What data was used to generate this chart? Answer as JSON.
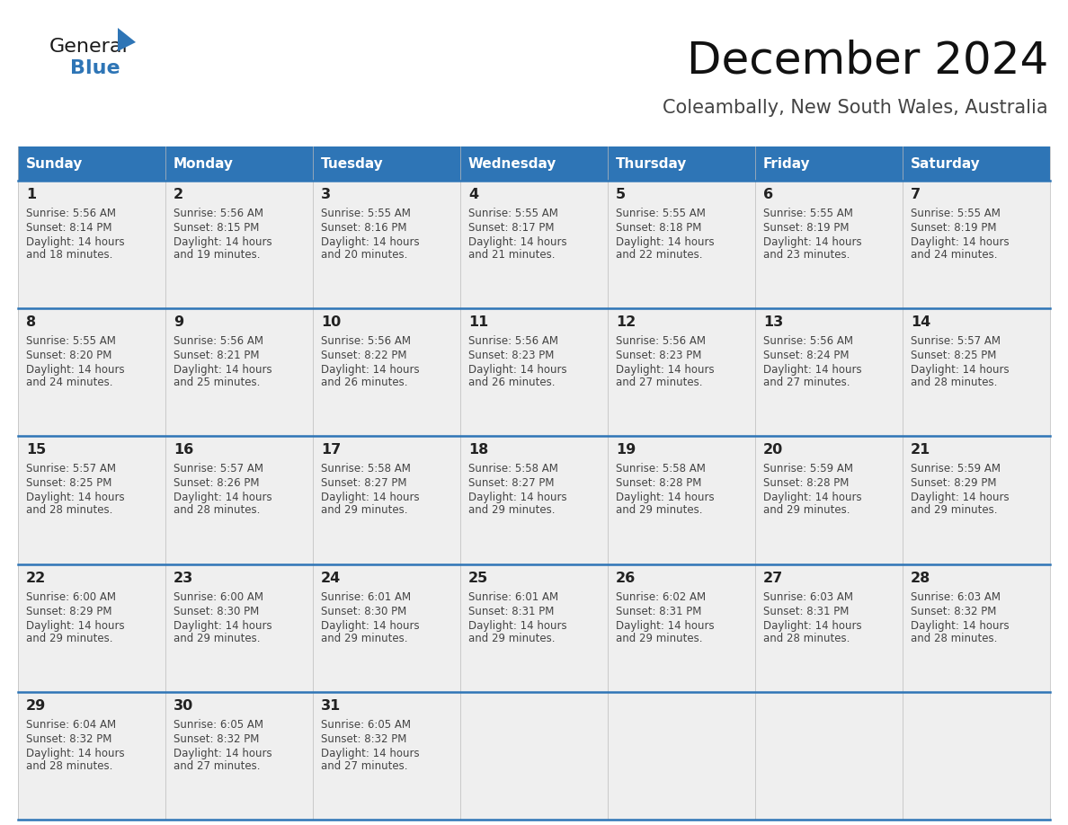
{
  "title": "December 2024",
  "subtitle": "Coleambally, New South Wales, Australia",
  "header_bg": "#2E75B6",
  "header_text": "#FFFFFF",
  "cell_bg_light": "#EFEFEF",
  "text_color": "#333333",
  "border_color": "#2E75B6",
  "days_of_week": [
    "Sunday",
    "Monday",
    "Tuesday",
    "Wednesday",
    "Thursday",
    "Friday",
    "Saturday"
  ],
  "weeks": [
    [
      {
        "day": 1,
        "sunrise": "5:56 AM",
        "sunset": "8:14 PM",
        "daylight": "14 hours and 18 minutes."
      },
      {
        "day": 2,
        "sunrise": "5:56 AM",
        "sunset": "8:15 PM",
        "daylight": "14 hours and 19 minutes."
      },
      {
        "day": 3,
        "sunrise": "5:55 AM",
        "sunset": "8:16 PM",
        "daylight": "14 hours and 20 minutes."
      },
      {
        "day": 4,
        "sunrise": "5:55 AM",
        "sunset": "8:17 PM",
        "daylight": "14 hours and 21 minutes."
      },
      {
        "day": 5,
        "sunrise": "5:55 AM",
        "sunset": "8:18 PM",
        "daylight": "14 hours and 22 minutes."
      },
      {
        "day": 6,
        "sunrise": "5:55 AM",
        "sunset": "8:19 PM",
        "daylight": "14 hours and 23 minutes."
      },
      {
        "day": 7,
        "sunrise": "5:55 AM",
        "sunset": "8:19 PM",
        "daylight": "14 hours and 24 minutes."
      }
    ],
    [
      {
        "day": 8,
        "sunrise": "5:55 AM",
        "sunset": "8:20 PM",
        "daylight": "14 hours and 24 minutes."
      },
      {
        "day": 9,
        "sunrise": "5:56 AM",
        "sunset": "8:21 PM",
        "daylight": "14 hours and 25 minutes."
      },
      {
        "day": 10,
        "sunrise": "5:56 AM",
        "sunset": "8:22 PM",
        "daylight": "14 hours and 26 minutes."
      },
      {
        "day": 11,
        "sunrise": "5:56 AM",
        "sunset": "8:23 PM",
        "daylight": "14 hours and 26 minutes."
      },
      {
        "day": 12,
        "sunrise": "5:56 AM",
        "sunset": "8:23 PM",
        "daylight": "14 hours and 27 minutes."
      },
      {
        "day": 13,
        "sunrise": "5:56 AM",
        "sunset": "8:24 PM",
        "daylight": "14 hours and 27 minutes."
      },
      {
        "day": 14,
        "sunrise": "5:57 AM",
        "sunset": "8:25 PM",
        "daylight": "14 hours and 28 minutes."
      }
    ],
    [
      {
        "day": 15,
        "sunrise": "5:57 AM",
        "sunset": "8:25 PM",
        "daylight": "14 hours and 28 minutes."
      },
      {
        "day": 16,
        "sunrise": "5:57 AM",
        "sunset": "8:26 PM",
        "daylight": "14 hours and 28 minutes."
      },
      {
        "day": 17,
        "sunrise": "5:58 AM",
        "sunset": "8:27 PM",
        "daylight": "14 hours and 29 minutes."
      },
      {
        "day": 18,
        "sunrise": "5:58 AM",
        "sunset": "8:27 PM",
        "daylight": "14 hours and 29 minutes."
      },
      {
        "day": 19,
        "sunrise": "5:58 AM",
        "sunset": "8:28 PM",
        "daylight": "14 hours and 29 minutes."
      },
      {
        "day": 20,
        "sunrise": "5:59 AM",
        "sunset": "8:28 PM",
        "daylight": "14 hours and 29 minutes."
      },
      {
        "day": 21,
        "sunrise": "5:59 AM",
        "sunset": "8:29 PM",
        "daylight": "14 hours and 29 minutes."
      }
    ],
    [
      {
        "day": 22,
        "sunrise": "6:00 AM",
        "sunset": "8:29 PM",
        "daylight": "14 hours and 29 minutes."
      },
      {
        "day": 23,
        "sunrise": "6:00 AM",
        "sunset": "8:30 PM",
        "daylight": "14 hours and 29 minutes."
      },
      {
        "day": 24,
        "sunrise": "6:01 AM",
        "sunset": "8:30 PM",
        "daylight": "14 hours and 29 minutes."
      },
      {
        "day": 25,
        "sunrise": "6:01 AM",
        "sunset": "8:31 PM",
        "daylight": "14 hours and 29 minutes."
      },
      {
        "day": 26,
        "sunrise": "6:02 AM",
        "sunset": "8:31 PM",
        "daylight": "14 hours and 29 minutes."
      },
      {
        "day": 27,
        "sunrise": "6:03 AM",
        "sunset": "8:31 PM",
        "daylight": "14 hours and 28 minutes."
      },
      {
        "day": 28,
        "sunrise": "6:03 AM",
        "sunset": "8:32 PM",
        "daylight": "14 hours and 28 minutes."
      }
    ],
    [
      {
        "day": 29,
        "sunrise": "6:04 AM",
        "sunset": "8:32 PM",
        "daylight": "14 hours and 28 minutes."
      },
      {
        "day": 30,
        "sunrise": "6:05 AM",
        "sunset": "8:32 PM",
        "daylight": "14 hours and 27 minutes."
      },
      {
        "day": 31,
        "sunrise": "6:05 AM",
        "sunset": "8:32 PM",
        "daylight": "14 hours and 27 minutes."
      },
      null,
      null,
      null,
      null
    ]
  ]
}
